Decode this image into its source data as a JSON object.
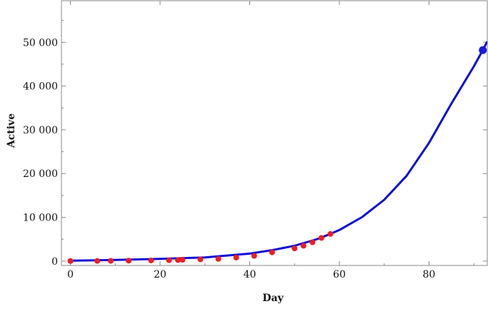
{
  "chart_data": {
    "type": "scatter",
    "title": "",
    "xlabel": "Day",
    "ylabel": "Active",
    "xlim": [
      -2,
      93
    ],
    "ylim": [
      -1000,
      59500
    ],
    "x_ticks": [
      0,
      20,
      40,
      60,
      80
    ],
    "x_tick_labels": [
      "0",
      "20",
      "40",
      "60",
      "80"
    ],
    "y_ticks": [
      0,
      10000,
      20000,
      30000,
      40000,
      50000
    ],
    "y_tick_labels": [
      "0",
      "10 000",
      "20 000",
      "30 000",
      "40 000",
      "50 000"
    ],
    "grid": false,
    "colors": {
      "observed": "#ee1c24",
      "fit": "#0a0ad6",
      "projection": "#1a1ae0",
      "axis": "#888888"
    },
    "series": [
      {
        "type": "scatter",
        "x": [
          0,
          6,
          9,
          13,
          18,
          22,
          24,
          25,
          29,
          33,
          37,
          41,
          45,
          50,
          52,
          54,
          56,
          58
        ],
        "y": [
          10,
          30,
          60,
          100,
          150,
          200,
          250,
          300,
          400,
          500,
          800,
          1200,
          2000,
          2900,
          3500,
          4300,
          5300,
          6200
        ]
      },
      {
        "type": "line",
        "x": [
          0,
          10,
          20,
          30,
          40,
          45,
          50,
          55,
          58,
          60,
          65,
          70,
          75,
          80,
          85,
          90,
          92,
          93
        ],
        "y": [
          100,
          250,
          500,
          850,
          1700,
          2500,
          3500,
          5000,
          6200,
          7100,
          10000,
          14000,
          19500,
          27000,
          36000,
          44500,
          48200,
          50200
        ]
      },
      {
        "type": "scatter",
        "x": [
          92
        ],
        "y": [
          48200
        ]
      }
    ]
  }
}
